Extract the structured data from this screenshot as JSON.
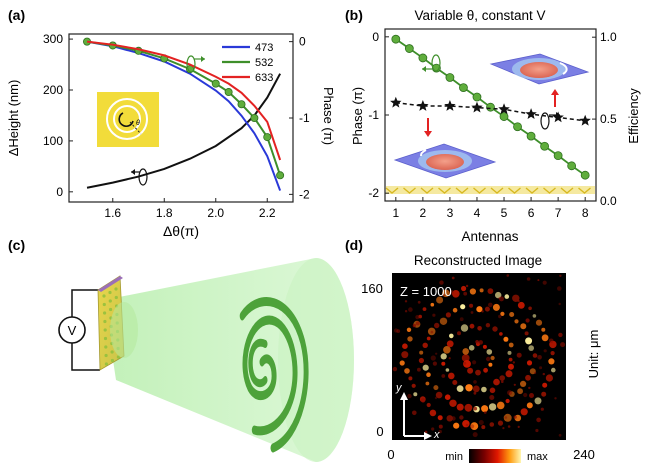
{
  "panels": {
    "a": {
      "label": "(a)"
    },
    "b": {
      "label": "(b)",
      "title": "Variable θ, constant V"
    },
    "c": {
      "label": "(c)",
      "source_label": "V"
    },
    "d": {
      "label": "(d)",
      "title": "Reconstructed Image",
      "z_label": "Z = 1000",
      "y_top": "160",
      "y_bottom": "0",
      "x_left": "0",
      "x_right": "240",
      "unit_label": "Unit: μm",
      "cbar_min": "min",
      "cbar_max": "max",
      "axis_x": "x",
      "axis_y": "y"
    }
  },
  "colors": {
    "s473": "#2a39d8",
    "s532": "#3e8f2a",
    "s633": "#e32222",
    "height": "#111111",
    "marker_green": "#5fad3c",
    "yellow": "#f2dc3a"
  },
  "chart_data": [
    {
      "type": "line",
      "panel": "a",
      "xlabel": "Δθ(π)",
      "ylabel_left": "ΔHeight (nm)",
      "ylabel_right": "Phase (π)",
      "xlim": [
        1.43,
        2.3
      ],
      "ylim_left": [
        -20,
        310
      ],
      "ylim_right": [
        -2.1,
        0.1
      ],
      "xticks": [
        1.6,
        1.8,
        2.0,
        2.2
      ],
      "xtick_labels": [
        "1.6",
        "1.8",
        "2.0",
        "2.2"
      ],
      "yticks_left": [
        0,
        100,
        200,
        300
      ],
      "yticks_left_labels": [
        "0",
        "100",
        "200",
        "300"
      ],
      "yticks_right": [
        0,
        -1,
        -2
      ],
      "yticks_right_labels": [
        "0",
        "-1",
        "-2"
      ],
      "legend": "top-right",
      "height_series": {
        "x": [
          1.5,
          1.6,
          1.7,
          1.8,
          1.9,
          2.0,
          2.1,
          2.15,
          2.2,
          2.25
        ],
        "y": [
          8,
          18,
          30,
          45,
          65,
          90,
          125,
          150,
          185,
          232
        ]
      },
      "series": [
        {
          "name": "473",
          "color_key": "s473",
          "x": [
            1.5,
            1.6,
            1.7,
            1.8,
            1.9,
            2.0,
            2.05,
            2.1,
            2.15,
            2.2,
            2.25
          ],
          "y": [
            0,
            -0.06,
            -0.15,
            -0.26,
            -0.42,
            -0.64,
            -0.78,
            -0.97,
            -1.2,
            -1.5,
            -1.95
          ]
        },
        {
          "name": "532",
          "color_key": "s532",
          "markers": true,
          "x": [
            1.5,
            1.6,
            1.7,
            1.8,
            1.9,
            2.0,
            2.05,
            2.1,
            2.15,
            2.2,
            2.25
          ],
          "y": [
            0,
            -0.05,
            -0.12,
            -0.22,
            -0.36,
            -0.55,
            -0.66,
            -0.82,
            -1.0,
            -1.25,
            -1.75
          ]
        },
        {
          "name": "633",
          "color_key": "s633",
          "x": [
            1.5,
            1.6,
            1.7,
            1.8,
            1.9,
            2.0,
            2.05,
            2.1,
            2.15,
            2.2,
            2.25
          ],
          "y": [
            0,
            -0.04,
            -0.1,
            -0.18,
            -0.3,
            -0.46,
            -0.55,
            -0.67,
            -0.84,
            -1.05,
            -1.55
          ]
        }
      ]
    },
    {
      "type": "line",
      "panel": "b",
      "xlabel": "Antennas",
      "ylabel_left": "Phase (π)",
      "ylabel_right": "Efficiency",
      "xlim": [
        0.6,
        8.4
      ],
      "ylim_left": [
        -2.1,
        0.1
      ],
      "ylim_right": [
        0,
        1.05
      ],
      "xticks": [
        1,
        2,
        3,
        4,
        5,
        6,
        7,
        8
      ],
      "yticks_left": [
        0,
        -1,
        -2
      ],
      "yticks_left_labels": [
        "0",
        "-1",
        "-2"
      ],
      "yticks_right": [
        0.0,
        0.5,
        1.0
      ],
      "yticks_right_labels": [
        "0.0",
        "0.5",
        "1.0"
      ],
      "phase_series": {
        "x": [
          1,
          1.5,
          2,
          2.5,
          3,
          3.5,
          4,
          4.5,
          5,
          5.5,
          6,
          6.5,
          7,
          7.5,
          8
        ],
        "y": [
          -0.03,
          -0.15,
          -0.27,
          -0.4,
          -0.52,
          -0.65,
          -0.77,
          -0.9,
          -1.02,
          -1.15,
          -1.27,
          -1.4,
          -1.52,
          -1.65,
          -1.77
        ]
      },
      "efficiency_series": {
        "x": [
          1,
          2,
          3,
          4,
          5,
          6,
          7,
          8
        ],
        "y": [
          0.6,
          0.58,
          0.58,
          0.57,
          0.56,
          0.53,
          0.51,
          0.49
        ]
      }
    }
  ]
}
